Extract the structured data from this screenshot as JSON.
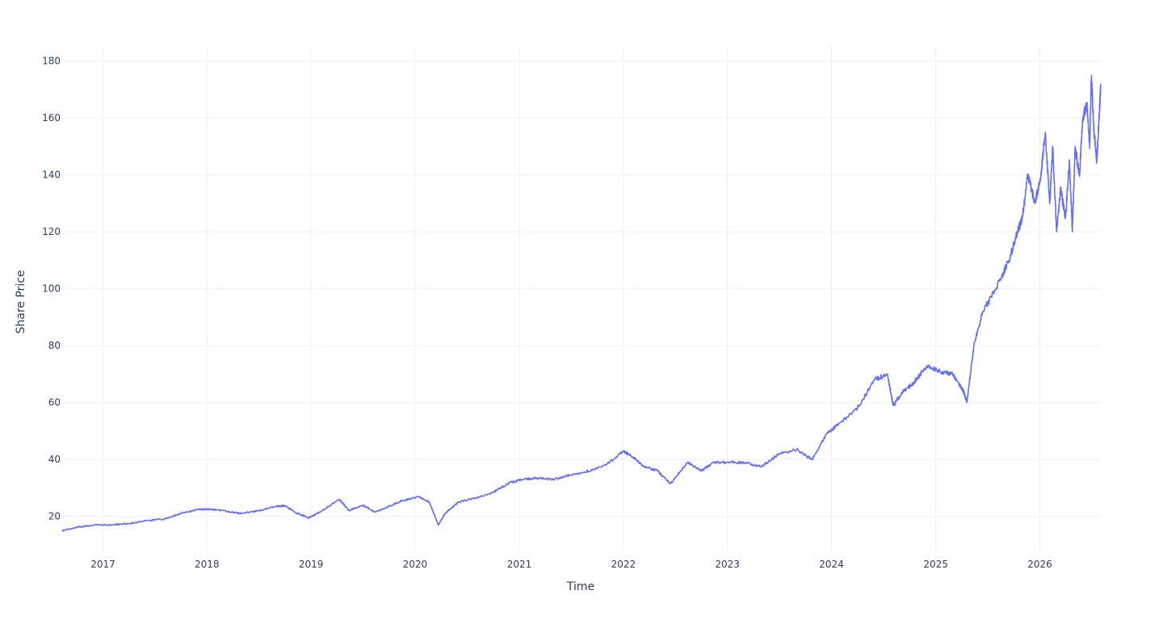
{
  "chart_data": {
    "type": "line",
    "title": "",
    "xlabel": "Time",
    "ylabel": "Share Price",
    "x_axis": {
      "type": "date",
      "range": [
        "2016-08-11",
        "2026-08-03"
      ],
      "ticks": [
        {
          "value": "2017-01-01",
          "label": "2017"
        },
        {
          "value": "2018-01-01",
          "label": "2018"
        },
        {
          "value": "2019-01-01",
          "label": "2019"
        },
        {
          "value": "2020-01-01",
          "label": "2020"
        },
        {
          "value": "2021-01-01",
          "label": "2021"
        },
        {
          "value": "2022-01-01",
          "label": "2022"
        },
        {
          "value": "2023-01-01",
          "label": "2023"
        },
        {
          "value": "2024-01-01",
          "label": "2024"
        },
        {
          "value": "2025-01-01",
          "label": "2025"
        },
        {
          "value": "2026-01-01",
          "label": "2026"
        }
      ]
    },
    "y_axis": {
      "range": [
        8,
        185
      ],
      "ticks": [
        20,
        40,
        60,
        80,
        100,
        120,
        140,
        160,
        180
      ]
    },
    "grid": true,
    "legend": "none",
    "colors": {
      "line": "#636efa",
      "grid": "#ebf0f8",
      "text": "#2a3f5f",
      "background": "#ffffff"
    },
    "series": [
      {
        "x": [
          "2016-08-11",
          "2016-10-01",
          "2016-12-01",
          "2017-02-01",
          "2017-04-01",
          "2017-06-01",
          "2017-08-01",
          "2017-10-01",
          "2017-12-01",
          "2018-01-15",
          "2018-03-01",
          "2018-05-01",
          "2018-07-01",
          "2018-09-01",
          "2018-10-01",
          "2018-11-15",
          "2018-12-24",
          "2019-02-01",
          "2019-04-10",
          "2019-05-15",
          "2019-07-01",
          "2019-08-15",
          "2019-10-01",
          "2019-11-15",
          "2020-01-15",
          "2020-02-20",
          "2020-03-23",
          "2020-04-15",
          "2020-06-01",
          "2020-08-01",
          "2020-10-01",
          "2020-12-01",
          "2021-01-15",
          "2021-03-01",
          "2021-05-01",
          "2021-07-01",
          "2021-09-01",
          "2021-11-01",
          "2022-01-01",
          "2022-02-01",
          "2022-03-15",
          "2022-05-01",
          "2022-06-15",
          "2022-08-15",
          "2022-10-01",
          "2022-11-15",
          "2023-01-01",
          "2023-03-01",
          "2023-05-01",
          "2023-07-01",
          "2023-09-01",
          "2023-10-25",
          "2023-12-15",
          "2024-02-01",
          "2024-04-01",
          "2024-06-01",
          "2024-07-15",
          "2024-08-05",
          "2024-09-01",
          "2024-10-15",
          "2024-12-01",
          "2025-01-15",
          "2025-03-01",
          "2025-04-08",
          "2025-04-20",
          "2025-05-15",
          "2025-06-15",
          "2025-08-01",
          "2025-09-15",
          "2025-10-15",
          "2025-11-01",
          "2025-11-20",
          "2025-12-15",
          "2026-01-05",
          "2026-01-20",
          "2026-02-05",
          "2026-02-15",
          "2026-03-01",
          "2026-03-15",
          "2026-04-01",
          "2026-04-15",
          "2026-04-25",
          "2026-05-05",
          "2026-05-20",
          "2026-06-01",
          "2026-06-15",
          "2026-06-25",
          "2026-07-01",
          "2026-07-10",
          "2026-07-20",
          "2026-07-28",
          "2026-08-03"
        ],
        "y": [
          15,
          16.2,
          17,
          17,
          17.5,
          18.5,
          19,
          21,
          22.5,
          22.5,
          22,
          21,
          22,
          23.5,
          23.8,
          21,
          19.5,
          21.5,
          26,
          22,
          24,
          21.5,
          23.5,
          25.5,
          27,
          25,
          17,
          21,
          25,
          26.5,
          28.5,
          32,
          33,
          33.5,
          33,
          34.5,
          36,
          38,
          43,
          41,
          37.5,
          36,
          31.5,
          39,
          36,
          39,
          39,
          39,
          37.5,
          42,
          43.5,
          40,
          49,
          53,
          58,
          68,
          70,
          59,
          63,
          67,
          73,
          71,
          70,
          64,
          60,
          80,
          92,
          100,
          110,
          120,
          125,
          140,
          130,
          140,
          155,
          130,
          150,
          120,
          135,
          125,
          145,
          120,
          150,
          140,
          160,
          165,
          150,
          175,
          155,
          145,
          160,
          172
        ]
      }
    ]
  }
}
